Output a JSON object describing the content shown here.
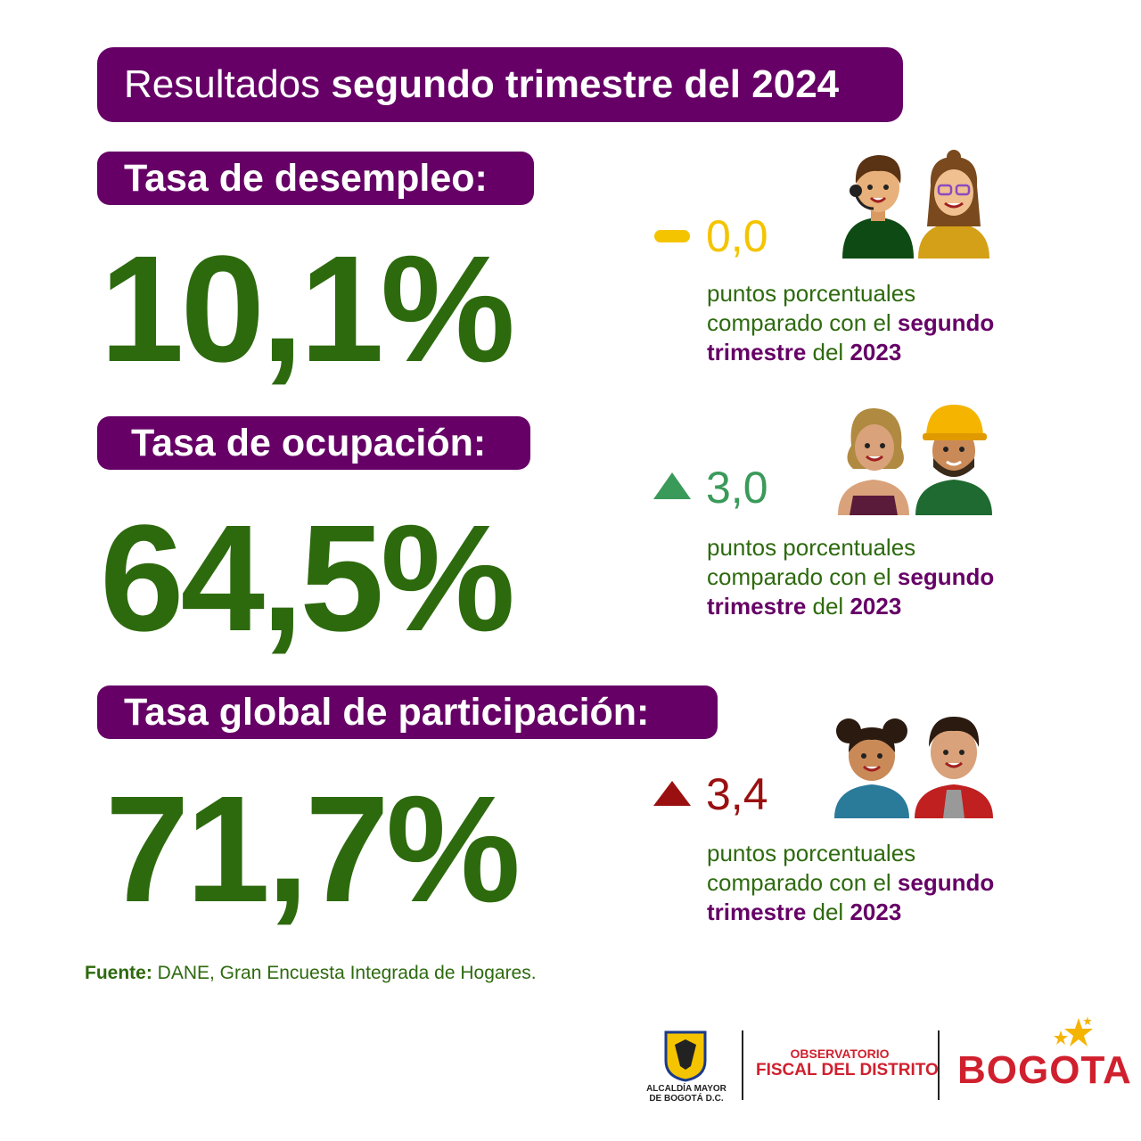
{
  "header": {
    "title_light": "Resultados",
    "title_bold": "segundo trimestre del 2024"
  },
  "indicators": [
    {
      "label": "Tasa de desempleo:",
      "value": "10,1%",
      "change": "0,0",
      "change_icon": "dash-icon",
      "change_color": "#f4c400",
      "desc_line1": "puntos porcentuales",
      "desc_prefix": "comparado con el",
      "desc_bold1": "segundo",
      "desc_bold2": "trimestre",
      "desc_mid": "del",
      "desc_year": "2023"
    },
    {
      "label": "Tasa de ocupación:",
      "value": "64,5%",
      "change": "3,0",
      "change_icon": "triangle-up-icon",
      "change_color": "#3a9a5a",
      "desc_line1": "puntos porcentuales",
      "desc_prefix": "comparado con el",
      "desc_bold1": "segundo",
      "desc_bold2": "trimestre",
      "desc_mid": "del",
      "desc_year": "2023"
    },
    {
      "label": "Tasa global de participación:",
      "value": "71,7%",
      "change": "3,4",
      "change_icon": "triangle-up-icon",
      "change_color": "#9a1010",
      "desc_line1": "puntos porcentuales",
      "desc_prefix": "comparado con el",
      "desc_bold1": "segundo",
      "desc_bold2": "trimestre",
      "desc_mid": "del",
      "desc_year": "2023"
    }
  ],
  "source": {
    "label": "Fuente:",
    "text": "DANE, Gran Encuesta Integrada de Hogares."
  },
  "footer": {
    "alcaldia_line1": "ALCALDÍA MAYOR",
    "alcaldia_line2": "DE BOGOTÁ D.C.",
    "observatorio_line1": "OBSERVATORIO",
    "observatorio_line2": "FISCAL DEL DISTRITO",
    "bogota": "BOGOTA"
  },
  "colors": {
    "purple": "#660066",
    "green": "#2d6a0e",
    "red": "#d0202e"
  }
}
